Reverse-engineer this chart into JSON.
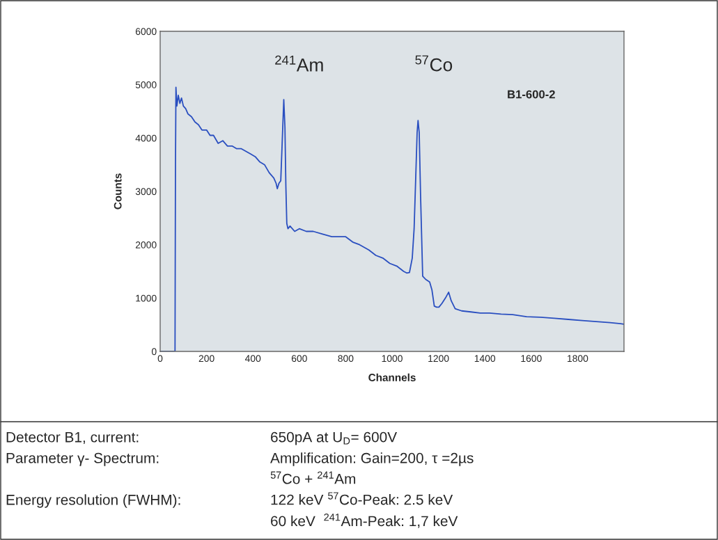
{
  "chart_data": {
    "type": "line",
    "xlabel": "Channels",
    "ylabel": "Counts",
    "xlim": [
      0,
      2000
    ],
    "ylim": [
      0,
      6000
    ],
    "xticks": [
      0,
      200,
      400,
      600,
      800,
      1000,
      1200,
      1400,
      1600,
      1800
    ],
    "yticks": [
      0,
      1000,
      2000,
      3000,
      4000,
      5000,
      6000
    ],
    "grid": false,
    "marker": "none",
    "line_style": "solid",
    "series": [
      {
        "color": "#2a4fc0",
        "x": [
          0,
          64,
          66,
          68,
          72,
          78,
          85,
          92,
          100,
          110,
          120,
          135,
          150,
          165,
          180,
          200,
          215,
          230,
          250,
          270,
          290,
          310,
          330,
          350,
          370,
          390,
          410,
          430,
          450,
          470,
          490,
          500,
          505,
          512,
          520,
          526,
          533,
          538,
          542,
          546,
          551,
          560,
          580,
          600,
          630,
          660,
          700,
          740,
          780,
          800,
          830,
          860,
          900,
          930,
          960,
          990,
          1020,
          1050,
          1063,
          1075,
          1087,
          1095,
          1103,
          1108,
          1112,
          1117,
          1123,
          1132,
          1145,
          1162,
          1172,
          1182,
          1192,
          1202,
          1215,
          1230,
          1244,
          1255,
          1272,
          1300,
          1340,
          1380,
          1420,
          1470,
          1520,
          1580,
          1640,
          1700,
          1760,
          1820,
          1880,
          1940,
          1985,
          2000
        ],
        "values": [
          0,
          0,
          3500,
          4950,
          4600,
          4800,
          4650,
          4750,
          4600,
          4550,
          4450,
          4400,
          4300,
          4250,
          4150,
          4150,
          4050,
          4050,
          3900,
          3950,
          3850,
          3850,
          3800,
          3800,
          3750,
          3700,
          3650,
          3550,
          3500,
          3350,
          3250,
          3150,
          3050,
          3150,
          3200,
          3900,
          4720,
          4200,
          3100,
          2400,
          2300,
          2350,
          2250,
          2300,
          2250,
          2250,
          2200,
          2150,
          2150,
          2150,
          2050,
          2000,
          1900,
          1800,
          1750,
          1650,
          1600,
          1500,
          1470,
          1480,
          1750,
          2300,
          3400,
          4100,
          4330,
          4100,
          2900,
          1410,
          1350,
          1300,
          1150,
          850,
          830,
          830,
          900,
          1000,
          1110,
          950,
          800,
          760,
          740,
          720,
          720,
          700,
          690,
          650,
          640,
          620,
          600,
          580,
          560,
          540,
          520,
          510
        ]
      }
    ],
    "annotations": [
      "$^{241}$Am",
      "$^{57}$Co",
      "B1-600-2",
      "Detector B1, current:",
      "650pA at U$_{D}$= 600V",
      "Parameter γ- Spectrum:",
      "Amplification: Gain=200, τ =2µs",
      "$^{57}$Co + $^{241}$Am",
      "Energy resolution (FWHM):",
      "122 keV $^{57}$Co-Peak: 2.5 keV",
      "60 keV  $^{241}$Am-Peak: 1,7 keV"
    ]
  }
}
